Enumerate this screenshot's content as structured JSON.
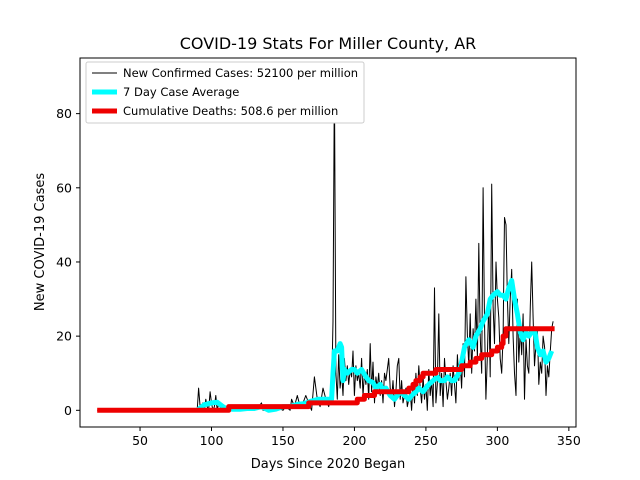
{
  "chart_data": {
    "type": "line",
    "title": "COVID-19 Stats For Miller County, AR",
    "xlabel": "Days Since 2020 Began",
    "ylabel": "New COVID-19 Cases",
    "xlim": [
      8,
      355
    ],
    "ylim": [
      -4.5,
      95
    ],
    "xticks": [
      50,
      100,
      150,
      200,
      250,
      300,
      350
    ],
    "yticks": [
      0,
      20,
      40,
      60,
      80
    ],
    "grid": false,
    "legend_position": "top-left",
    "series": [
      {
        "name": "New Confirmed Cases: 52100 per million",
        "color": "#000000",
        "points": [
          [
            20,
            0
          ],
          [
            90,
            0
          ],
          [
            91,
            6
          ],
          [
            92,
            1
          ],
          [
            93,
            0
          ],
          [
            94,
            2
          ],
          [
            95,
            0
          ],
          [
            96,
            3
          ],
          [
            97,
            1
          ],
          [
            98,
            0
          ],
          [
            99,
            5
          ],
          [
            100,
            2
          ],
          [
            101,
            0
          ],
          [
            102,
            1
          ],
          [
            103,
            4
          ],
          [
            104,
            0
          ],
          [
            105,
            2
          ],
          [
            106,
            1
          ],
          [
            107,
            0
          ],
          [
            108,
            1
          ],
          [
            109,
            0
          ],
          [
            110,
            0
          ],
          [
            112,
            0
          ],
          [
            115,
            1
          ],
          [
            118,
            0
          ],
          [
            121,
            0
          ],
          [
            124,
            1
          ],
          [
            127,
            0
          ],
          [
            130,
            0
          ],
          [
            133,
            1
          ],
          [
            135,
            2
          ],
          [
            136,
            0
          ],
          [
            140,
            0
          ],
          [
            145,
            1
          ],
          [
            150,
            0
          ],
          [
            152,
            1
          ],
          [
            155,
            0
          ],
          [
            156,
            3
          ],
          [
            158,
            1
          ],
          [
            160,
            4
          ],
          [
            162,
            1
          ],
          [
            164,
            2
          ],
          [
            166,
            4
          ],
          [
            168,
            2
          ],
          [
            170,
            0
          ],
          [
            172,
            9
          ],
          [
            174,
            3
          ],
          [
            176,
            1
          ],
          [
            178,
            6
          ],
          [
            180,
            3
          ],
          [
            182,
            1
          ],
          [
            184,
            5
          ],
          [
            185,
            24
          ],
          [
            186,
            90
          ],
          [
            187,
            10
          ],
          [
            188,
            3
          ],
          [
            189,
            15
          ],
          [
            190,
            6
          ],
          [
            191,
            10
          ],
          [
            192,
            4
          ],
          [
            193,
            14
          ],
          [
            194,
            8
          ],
          [
            195,
            12
          ],
          [
            196,
            7
          ],
          [
            197,
            11
          ],
          [
            198,
            9
          ],
          [
            199,
            16
          ],
          [
            200,
            4
          ],
          [
            201,
            12
          ],
          [
            202,
            8
          ],
          [
            203,
            10
          ],
          [
            204,
            6
          ],
          [
            205,
            14
          ],
          [
            206,
            4
          ],
          [
            207,
            10
          ],
          [
            208,
            7
          ],
          [
            209,
            11
          ],
          [
            210,
            3
          ],
          [
            211,
            18
          ],
          [
            212,
            5
          ],
          [
            213,
            13
          ],
          [
            214,
            2
          ],
          [
            215,
            9
          ],
          [
            216,
            6
          ],
          [
            217,
            10
          ],
          [
            218,
            4
          ],
          [
            219,
            8
          ],
          [
            220,
            2
          ],
          [
            221,
            10
          ],
          [
            222,
            8
          ],
          [
            224,
            14
          ],
          [
            225,
            6
          ],
          [
            226,
            3
          ],
          [
            227,
            8
          ],
          [
            228,
            1
          ],
          [
            229,
            5
          ],
          [
            230,
            12
          ],
          [
            231,
            14
          ],
          [
            232,
            3
          ],
          [
            233,
            8
          ],
          [
            234,
            2
          ],
          [
            235,
            4
          ],
          [
            236,
            6
          ],
          [
            237,
            1
          ],
          [
            238,
            3
          ],
          [
            239,
            5
          ],
          [
            240,
            0
          ],
          [
            241,
            7
          ],
          [
            242,
            2
          ],
          [
            243,
            10
          ],
          [
            244,
            4
          ],
          [
            245,
            12
          ],
          [
            246,
            6
          ],
          [
            247,
            2
          ],
          [
            248,
            9
          ],
          [
            249,
            3
          ],
          [
            250,
            7
          ],
          [
            251,
            0
          ],
          [
            252,
            11
          ],
          [
            253,
            4
          ],
          [
            254,
            8
          ],
          [
            255,
            1
          ],
          [
            256,
            33
          ],
          [
            257,
            2
          ],
          [
            258,
            7
          ],
          [
            259,
            26
          ],
          [
            260,
            4
          ],
          [
            261,
            10
          ],
          [
            262,
            1
          ],
          [
            263,
            14
          ],
          [
            264,
            8
          ],
          [
            265,
            3
          ],
          [
            266,
            6
          ],
          [
            267,
            10
          ],
          [
            268,
            4
          ],
          [
            269,
            12
          ],
          [
            270,
            7
          ],
          [
            271,
            2
          ],
          [
            272,
            15
          ],
          [
            273,
            8
          ],
          [
            274,
            13
          ],
          [
            275,
            6
          ],
          [
            276,
            18
          ],
          [
            277,
            9
          ],
          [
            278,
            36
          ],
          [
            279,
            20
          ],
          [
            280,
            12
          ],
          [
            281,
            26
          ],
          [
            282,
            10
          ],
          [
            283,
            22
          ],
          [
            284,
            16
          ],
          [
            285,
            30
          ],
          [
            286,
            14
          ],
          [
            287,
            45
          ],
          [
            288,
            20
          ],
          [
            289,
            10
          ],
          [
            290,
            60
          ],
          [
            291,
            24
          ],
          [
            292,
            3
          ],
          [
            293,
            15
          ],
          [
            294,
            30
          ],
          [
            295,
            9
          ],
          [
            296,
            61
          ],
          [
            297,
            28
          ],
          [
            298,
            18
          ],
          [
            299,
            40
          ],
          [
            300,
            30
          ],
          [
            301,
            25
          ],
          [
            302,
            14
          ],
          [
            303,
            10
          ],
          [
            304,
            20
          ],
          [
            305,
            52
          ],
          [
            306,
            50
          ],
          [
            307,
            30
          ],
          [
            308,
            18
          ],
          [
            309,
            30
          ],
          [
            310,
            38
          ],
          [
            311,
            20
          ],
          [
            312,
            10
          ],
          [
            313,
            4
          ],
          [
            314,
            30
          ],
          [
            315,
            13
          ],
          [
            316,
            22
          ],
          [
            317,
            15
          ],
          [
            318,
            26
          ],
          [
            319,
            3
          ],
          [
            320,
            19
          ],
          [
            321,
            12
          ],
          [
            322,
            10
          ],
          [
            323,
            28
          ],
          [
            324,
            40
          ],
          [
            325,
            25
          ],
          [
            326,
            12
          ],
          [
            327,
            18
          ],
          [
            328,
            22
          ],
          [
            329,
            7
          ],
          [
            330,
            13
          ],
          [
            331,
            10
          ],
          [
            332,
            20
          ],
          [
            333,
            17
          ],
          [
            334,
            4
          ],
          [
            335,
            12
          ],
          [
            336,
            9
          ],
          [
            337,
            16
          ],
          [
            338,
            22
          ],
          [
            339,
            24
          ]
        ]
      },
      {
        "name": "7 Day Case Average",
        "color": "#00ffff",
        "points": [
          [
            90,
            0
          ],
          [
            95,
            1.5
          ],
          [
            100,
            2
          ],
          [
            104,
            2.2
          ],
          [
            108,
            1
          ],
          [
            110,
            0.5
          ],
          [
            115,
            0.3
          ],
          [
            120,
            0.3
          ],
          [
            125,
            0.5
          ],
          [
            130,
            0.5
          ],
          [
            135,
            1
          ],
          [
            140,
            0
          ],
          [
            145,
            0.3
          ],
          [
            150,
            1
          ],
          [
            155,
            1
          ],
          [
            160,
            1.6
          ],
          [
            165,
            1.8
          ],
          [
            170,
            2.5
          ],
          [
            175,
            3
          ],
          [
            180,
            3
          ],
          [
            184,
            3
          ],
          [
            185,
            10
          ],
          [
            186,
            16
          ],
          [
            188,
            16
          ],
          [
            190,
            18
          ],
          [
            191,
            17
          ],
          [
            192,
            8
          ],
          [
            193,
            11
          ],
          [
            195,
            10
          ],
          [
            198,
            11
          ],
          [
            200,
            11
          ],
          [
            202,
            10
          ],
          [
            205,
            11
          ],
          [
            208,
            9
          ],
          [
            210,
            8
          ],
          [
            213,
            7.5
          ],
          [
            215,
            6
          ],
          [
            218,
            7
          ],
          [
            220,
            5.5
          ],
          [
            222,
            6
          ],
          [
            225,
            4
          ],
          [
            228,
            3
          ],
          [
            230,
            4
          ],
          [
            232,
            5
          ],
          [
            235,
            4
          ],
          [
            238,
            3
          ],
          [
            240,
            4
          ],
          [
            243,
            5
          ],
          [
            245,
            6
          ],
          [
            248,
            5
          ],
          [
            250,
            6
          ],
          [
            252,
            7
          ],
          [
            255,
            8
          ],
          [
            258,
            9
          ],
          [
            260,
            8
          ],
          [
            263,
            8
          ],
          [
            265,
            9
          ],
          [
            268,
            8
          ],
          [
            270,
            8
          ],
          [
            273,
            10
          ],
          [
            275,
            13
          ],
          [
            277,
            17
          ],
          [
            280,
            19
          ],
          [
            283,
            17
          ],
          [
            285,
            20
          ],
          [
            288,
            22
          ],
          [
            290,
            24
          ],
          [
            293,
            26
          ],
          [
            295,
            30
          ],
          [
            297,
            31
          ],
          [
            300,
            32
          ],
          [
            302,
            31
          ],
          [
            304,
            31
          ],
          [
            306,
            30
          ],
          [
            308,
            33
          ],
          [
            310,
            35
          ],
          [
            312,
            30
          ],
          [
            314,
            26
          ],
          [
            316,
            21
          ],
          [
            318,
            19
          ],
          [
            320,
            21
          ],
          [
            322,
            20
          ],
          [
            324,
            21
          ],
          [
            326,
            22
          ],
          [
            328,
            17
          ],
          [
            330,
            15
          ],
          [
            332,
            16
          ],
          [
            334,
            13
          ],
          [
            336,
            14
          ],
          [
            338,
            16
          ]
        ]
      },
      {
        "name": "Cumulative Deaths: 508.6 per million",
        "color": "#ff0000",
        "points": [
          [
            20,
            0
          ],
          [
            112,
            0
          ],
          [
            112,
            1
          ],
          [
            168,
            1
          ],
          [
            168,
            2
          ],
          [
            202,
            2
          ],
          [
            202,
            3
          ],
          [
            207,
            3
          ],
          [
            207,
            4
          ],
          [
            214,
            4
          ],
          [
            214,
            5
          ],
          [
            238,
            5
          ],
          [
            238,
            6
          ],
          [
            241,
            6
          ],
          [
            241,
            7
          ],
          [
            243,
            7
          ],
          [
            243,
            8
          ],
          [
            246,
            8
          ],
          [
            246,
            9
          ],
          [
            248,
            9
          ],
          [
            248,
            10
          ],
          [
            257,
            10
          ],
          [
            257,
            11
          ],
          [
            275,
            11
          ],
          [
            275,
            12
          ],
          [
            281,
            12
          ],
          [
            281,
            13
          ],
          [
            285,
            13
          ],
          [
            285,
            14
          ],
          [
            289,
            14
          ],
          [
            289,
            15
          ],
          [
            296,
            15
          ],
          [
            296,
            16
          ],
          [
            300,
            16
          ],
          [
            300,
            17
          ],
          [
            303,
            17
          ],
          [
            303,
            18
          ],
          [
            304,
            18
          ],
          [
            304,
            20
          ],
          [
            306,
            20
          ],
          [
            306,
            22
          ],
          [
            340,
            22
          ]
        ]
      }
    ]
  }
}
